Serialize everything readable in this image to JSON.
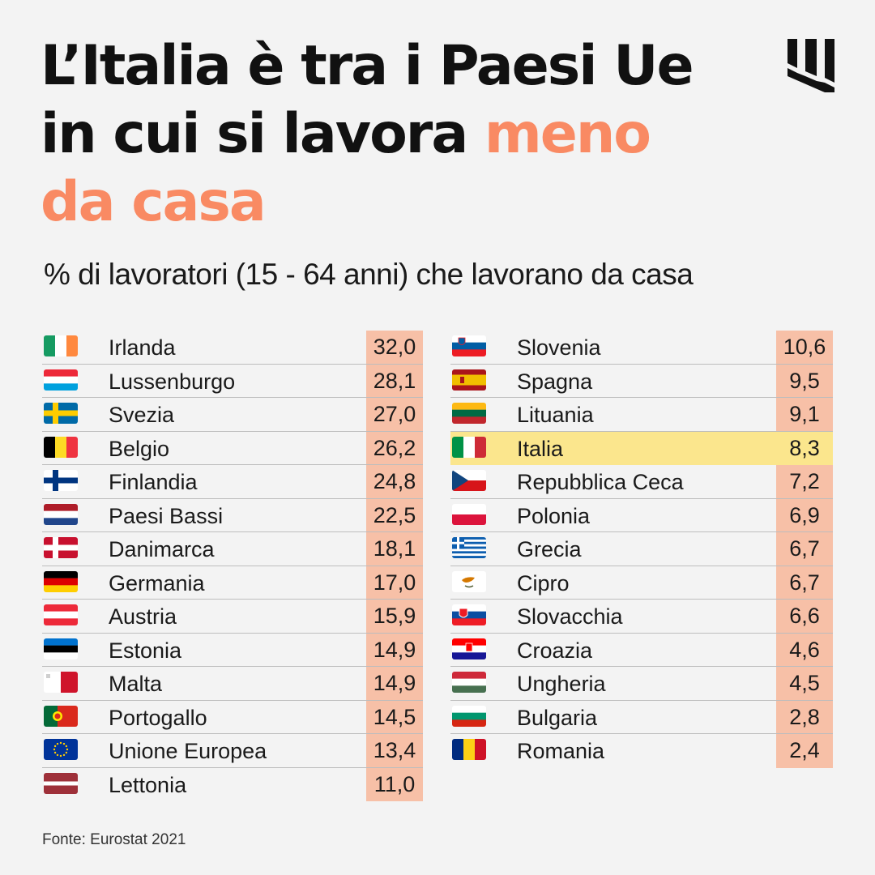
{
  "title": {
    "line1": "L’Italia è tra i Paesi Ue",
    "line2_prefix": "in cui si lavora ",
    "line2_highlight": "meno",
    "line3_highlight": "da casa"
  },
  "subtitle": "% di lavoratori (15 - 64 anni) che lavorano da casa",
  "source": "Fonte: Eurostat 2021",
  "colors": {
    "accent": "#f98a63",
    "value_bg": "#f7c0a7",
    "highlight_bg": "#fbe68d",
    "background": "#f3f3f3"
  },
  "chart_data": {
    "type": "table",
    "highlight": "Italia",
    "columns": [
      [
        {
          "country": "Irlanda",
          "value": "32,0",
          "flag": "ireland-flag"
        },
        {
          "country": "Lussenburgo",
          "value": "28,1",
          "flag": "luxembourg-flag"
        },
        {
          "country": "Svezia",
          "value": "27,0",
          "flag": "sweden-flag"
        },
        {
          "country": "Belgio",
          "value": "26,2",
          "flag": "belgium-flag"
        },
        {
          "country": "Finlandia",
          "value": "24,8",
          "flag": "finland-flag"
        },
        {
          "country": "Paesi Bassi",
          "value": "22,5",
          "flag": "netherlands-flag"
        },
        {
          "country": "Danimarca",
          "value": "18,1",
          "flag": "denmark-flag"
        },
        {
          "country": "Germania",
          "value": "17,0",
          "flag": "germany-flag"
        },
        {
          "country": "Austria",
          "value": "15,9",
          "flag": "austria-flag"
        },
        {
          "country": "Estonia",
          "value": "14,9",
          "flag": "estonia-flag"
        },
        {
          "country": "Malta",
          "value": "14,9",
          "flag": "malta-flag"
        },
        {
          "country": "Portogallo",
          "value": "14,5",
          "flag": "portugal-flag"
        },
        {
          "country": "Unione Europea",
          "value": "13,4",
          "flag": "eu-flag"
        },
        {
          "country": "Lettonia",
          "value": "11,0",
          "flag": "latvia-flag"
        }
      ],
      [
        {
          "country": "Slovenia",
          "value": "10,6",
          "flag": "slovenia-flag"
        },
        {
          "country": "Spagna",
          "value": "9,5",
          "flag": "spain-flag"
        },
        {
          "country": "Lituania",
          "value": "9,1",
          "flag": "lithuania-flag"
        },
        {
          "country": "Italia",
          "value": "8,3",
          "flag": "italy-flag"
        },
        {
          "country": "Repubblica Ceca",
          "value": "7,2",
          "flag": "czechia-flag"
        },
        {
          "country": "Polonia",
          "value": "6,9",
          "flag": "poland-flag"
        },
        {
          "country": "Grecia",
          "value": "6,7",
          "flag": "greece-flag"
        },
        {
          "country": "Cipro",
          "value": "6,7",
          "flag": "cyprus-flag"
        },
        {
          "country": "Slovacchia",
          "value": "6,6",
          "flag": "slovakia-flag"
        },
        {
          "country": "Croazia",
          "value": "4,6",
          "flag": "croatia-flag"
        },
        {
          "country": "Ungheria",
          "value": "4,5",
          "flag": "hungary-flag"
        },
        {
          "country": "Bulgaria",
          "value": "2,8",
          "flag": "bulgaria-flag"
        },
        {
          "country": "Romania",
          "value": "2,4",
          "flag": "romania-flag"
        }
      ]
    ]
  }
}
